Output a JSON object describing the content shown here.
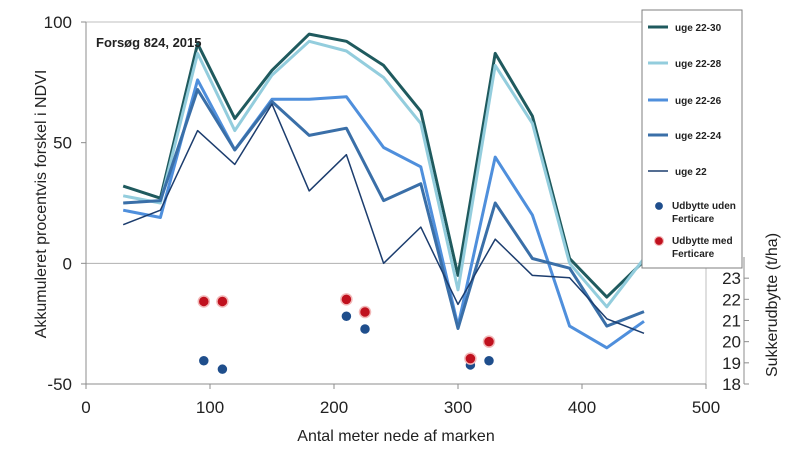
{
  "chart_data": {
    "type": "line",
    "annotation": "Forsøg 824, 2015",
    "xlabel": "Antal meter nede af marken",
    "ylabel": "Akkumuleret procentvis forskel i NDVI",
    "y2label": "Sukkerudbytte (t/ha)",
    "xlim": [
      0,
      500
    ],
    "ylim": [
      -50,
      100
    ],
    "y2lim": [
      18,
      24
    ],
    "x_ticks": [
      0,
      100,
      200,
      300,
      400,
      500
    ],
    "y_ticks": [
      -50,
      0,
      50,
      100
    ],
    "y2_ticks": [
      18,
      19,
      20,
      21,
      22,
      23
    ],
    "grid": "horizontal at 0",
    "legend_position": "right",
    "x": [
      30,
      60,
      90,
      120,
      150,
      180,
      210,
      240,
      270,
      300,
      330,
      360,
      390,
      420,
      450
    ],
    "series": [
      {
        "name": "uge 22-30",
        "color": "#1f5a5e",
        "width": 3,
        "values": [
          32,
          27,
          91,
          60,
          80,
          95,
          92,
          82,
          63,
          -5,
          87,
          61,
          2,
          -14,
          1
        ]
      },
      {
        "name": "uge 22-28",
        "color": "#93cddd",
        "width": 3,
        "values": [
          28,
          25,
          87,
          55,
          78,
          92,
          88,
          77,
          58,
          -11,
          82,
          58,
          0,
          -18,
          2
        ]
      },
      {
        "name": "uge 22-26",
        "color": "#4f8fdc",
        "width": 3,
        "values": [
          22,
          19,
          76,
          47,
          68,
          68,
          69,
          48,
          40,
          -26,
          44,
          20,
          -26,
          -35,
          -24
        ]
      },
      {
        "name": "uge 22-24",
        "color": "#3a6fa8",
        "width": 3,
        "values": [
          25,
          26,
          72,
          47,
          67,
          53,
          56,
          26,
          33,
          -27,
          25,
          2,
          -2,
          -26,
          -20
        ]
      },
      {
        "name": "uge 22",
        "color": "#1c3d6e",
        "width": 1.5,
        "values": [
          16,
          22,
          55,
          41,
          66,
          30,
          45,
          0,
          15,
          -17,
          10,
          -5,
          -6,
          -23,
          -29
        ]
      }
    ],
    "scatter": [
      {
        "name": "Udbytte uden Ferticare",
        "color": "#1f4e8c",
        "axis": "secondary",
        "points": [
          [
            95,
            19.1
          ],
          [
            110,
            18.7
          ],
          [
            210,
            21.2
          ],
          [
            225,
            20.6
          ],
          [
            310,
            18.9
          ],
          [
            325,
            19.1
          ]
        ]
      },
      {
        "name": "Udbytte med Ferticare",
        "color": "#c0111e",
        "axis": "secondary",
        "points": [
          [
            95,
            21.9
          ],
          [
            110,
            21.9
          ],
          [
            210,
            22.0
          ],
          [
            225,
            21.4
          ],
          [
            310,
            19.2
          ],
          [
            325,
            20.0
          ]
        ]
      }
    ]
  }
}
